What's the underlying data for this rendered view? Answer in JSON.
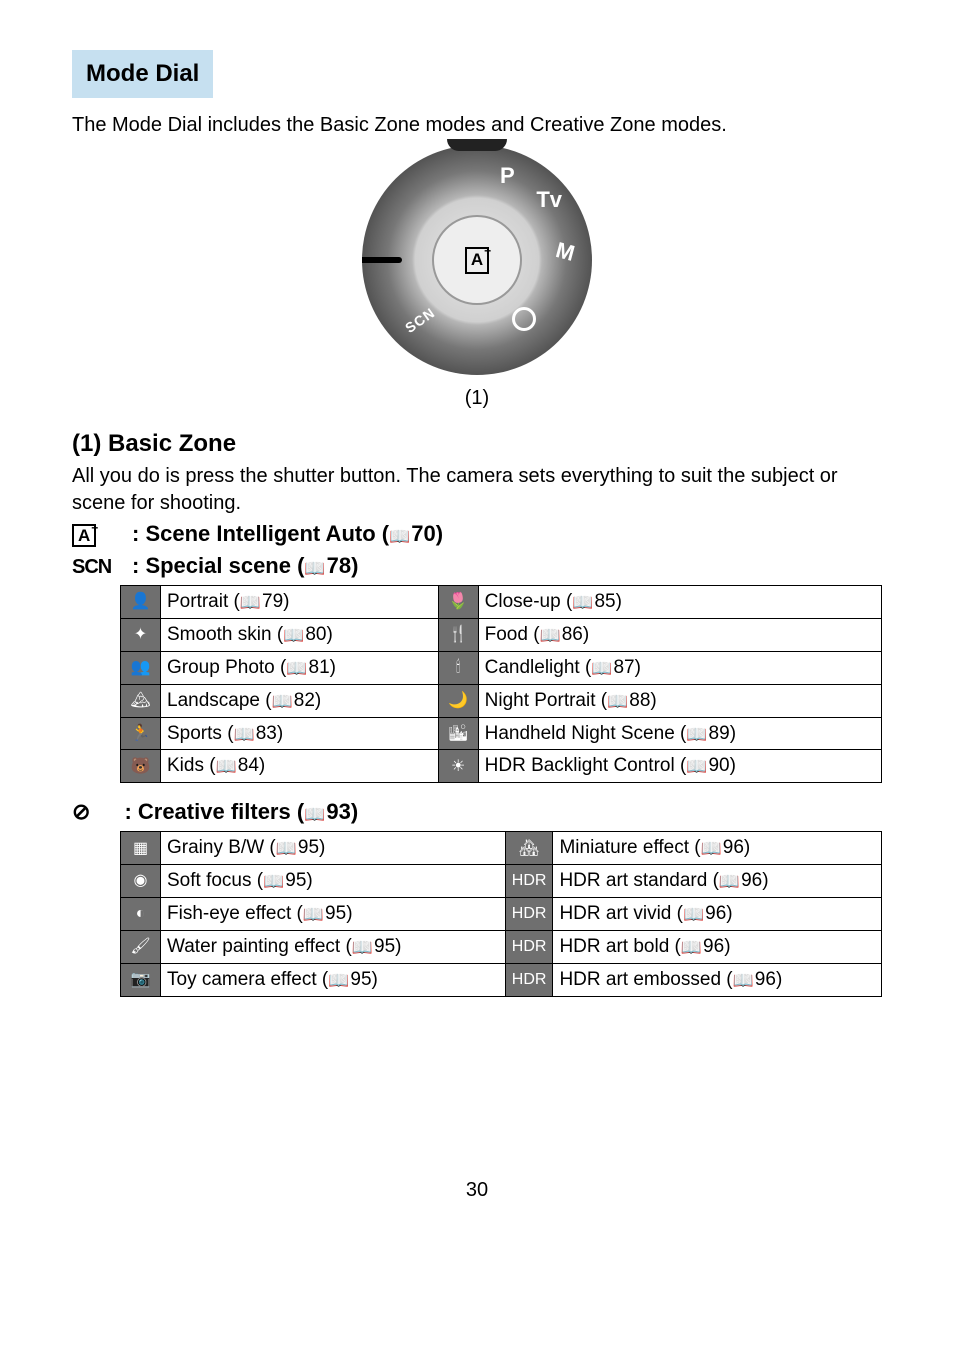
{
  "section_title": "Mode Dial",
  "intro": "The Mode Dial includes the Basic Zone modes and Creative Zone modes.",
  "dial_caption": "(1)",
  "basic_zone": {
    "heading": "(1) Basic Zone",
    "text": "All you do is press the shutter button. The camera sets everything to suit the subject or scene for shooting.",
    "modes": [
      {
        "sym_html": "A+",
        "label": ": Scene Intelligent Auto (",
        "page": "70",
        "close": ")"
      },
      {
        "sym_html": "SCN",
        "label": ": Special scene (",
        "page": "78",
        "close": ")"
      }
    ]
  },
  "scn_table": {
    "left": [
      {
        "icon": "👤",
        "name": "Portrait",
        "page": "79"
      },
      {
        "icon": "✦",
        "name": "Smooth skin",
        "page": "80"
      },
      {
        "icon": "👥",
        "name": "Group Photo",
        "page": "81"
      },
      {
        "icon": "🏔",
        "name": "Landscape",
        "page": "82"
      },
      {
        "icon": "🏃",
        "name": "Sports",
        "page": "83"
      },
      {
        "icon": "🐻",
        "name": "Kids",
        "page": "84"
      }
    ],
    "right": [
      {
        "icon": "🌷",
        "name": "Close-up",
        "page": "85"
      },
      {
        "icon": "🍴",
        "name": "Food",
        "page": "86"
      },
      {
        "icon": "🕯",
        "name": "Candlelight",
        "page": "87"
      },
      {
        "icon": "🌙",
        "name": "Night Portrait",
        "page": "88"
      },
      {
        "icon": "🏙",
        "name": "Handheld Night Scene",
        "page": "89"
      },
      {
        "icon": "☀",
        "name": "HDR Backlight Control",
        "page": "90"
      }
    ]
  },
  "creative_filters": {
    "sym": "⊘",
    "label": ": Creative filters (",
    "page": "93",
    "close": ")"
  },
  "cf_table": {
    "left": [
      {
        "icon": "▦",
        "name": "Grainy B/W",
        "page": "95"
      },
      {
        "icon": "◉",
        "name": "Soft focus",
        "page": "95"
      },
      {
        "icon": "◐",
        "name": "Fish-eye effect",
        "page": "95"
      },
      {
        "icon": "🖌",
        "name": "Water painting effect",
        "page": "95"
      },
      {
        "icon": "📷",
        "name": "Toy camera effect",
        "page": "95"
      }
    ],
    "right": [
      {
        "icon": "🏘",
        "name": "Miniature effect",
        "page": "96"
      },
      {
        "icon": "HDR",
        "name": "HDR art standard",
        "page": "96"
      },
      {
        "icon": "HDR",
        "name": "HDR art vivid",
        "page": "96"
      },
      {
        "icon": "HDR",
        "name": "HDR art bold",
        "page": "96"
      },
      {
        "icon": "HDR",
        "name": "HDR art embossed",
        "page": "96"
      }
    ]
  },
  "page_number": "30"
}
